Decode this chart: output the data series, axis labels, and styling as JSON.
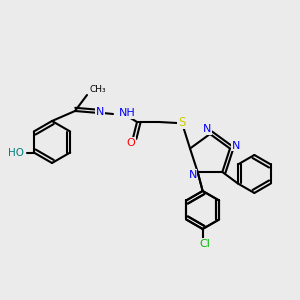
{
  "bg_color": "#ebebeb",
  "bond_color": "#000000",
  "atom_colors": {
    "N": "#0000ff",
    "O": "#ff0000",
    "S": "#cccc00",
    "Cl": "#00bb00",
    "HO": "#008080"
  },
  "figsize": [
    3.0,
    3.0
  ],
  "dpi": 100
}
